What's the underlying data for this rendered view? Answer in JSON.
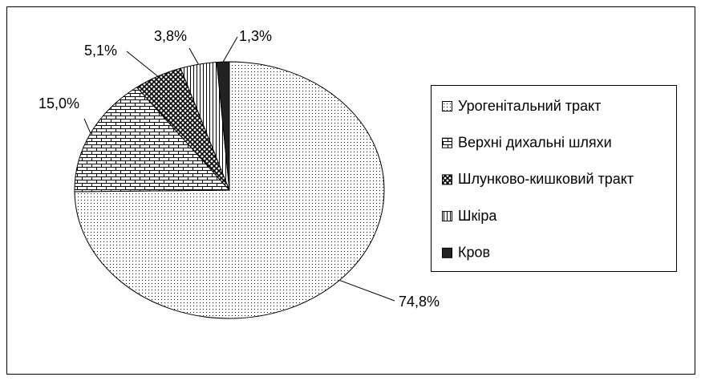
{
  "chart_data": {
    "type": "pie",
    "categories": [
      "Урогенітальний тракт",
      "Верхні дихальні шляхи",
      "Шлунково-кишковий тракт",
      "Шкіра",
      "Кров"
    ],
    "values": [
      74.8,
      15.0,
      5.1,
      3.8,
      1.3
    ],
    "value_labels": [
      "74,8%",
      "15,0%",
      "5,1%",
      "3,8%",
      "1,3%"
    ],
    "legend": "right"
  }
}
